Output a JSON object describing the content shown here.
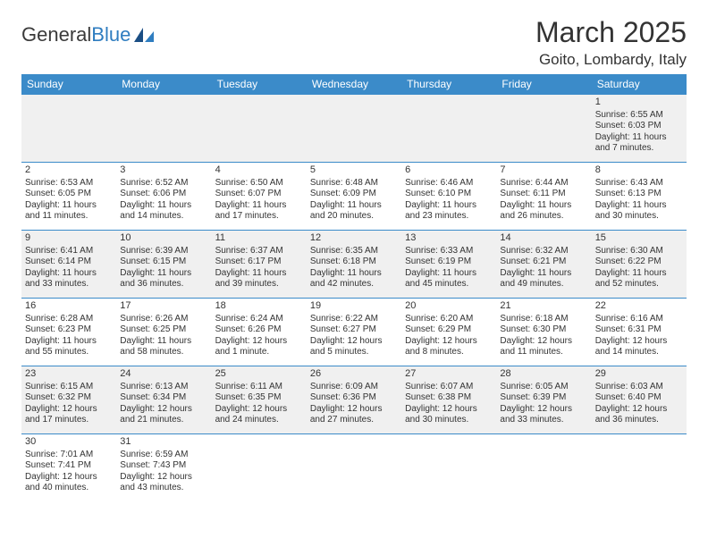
{
  "logo": {
    "text_general": "General",
    "text_blue": "Blue"
  },
  "title": "March 2025",
  "location": "Goito, Lombardy, Italy",
  "colors": {
    "header_bg": "#3b8bc9",
    "header_text": "#ffffff",
    "row_alt_bg": "#f0f0f0",
    "row_bg": "#ffffff",
    "border": "#3b8bc9",
    "text": "#333333",
    "logo_blue": "#2f7dc0"
  },
  "day_headers": [
    "Sunday",
    "Monday",
    "Tuesday",
    "Wednesday",
    "Thursday",
    "Friday",
    "Saturday"
  ],
  "weeks": [
    [
      null,
      null,
      null,
      null,
      null,
      null,
      {
        "n": "1",
        "sunrise": "6:55 AM",
        "sunset": "6:03 PM",
        "day_h": "11",
        "day_m": "7"
      }
    ],
    [
      {
        "n": "2",
        "sunrise": "6:53 AM",
        "sunset": "6:05 PM",
        "day_h": "11",
        "day_m": "11"
      },
      {
        "n": "3",
        "sunrise": "6:52 AM",
        "sunset": "6:06 PM",
        "day_h": "11",
        "day_m": "14"
      },
      {
        "n": "4",
        "sunrise": "6:50 AM",
        "sunset": "6:07 PM",
        "day_h": "11",
        "day_m": "17"
      },
      {
        "n": "5",
        "sunrise": "6:48 AM",
        "sunset": "6:09 PM",
        "day_h": "11",
        "day_m": "20"
      },
      {
        "n": "6",
        "sunrise": "6:46 AM",
        "sunset": "6:10 PM",
        "day_h": "11",
        "day_m": "23"
      },
      {
        "n": "7",
        "sunrise": "6:44 AM",
        "sunset": "6:11 PM",
        "day_h": "11",
        "day_m": "26"
      },
      {
        "n": "8",
        "sunrise": "6:43 AM",
        "sunset": "6:13 PM",
        "day_h": "11",
        "day_m": "30"
      }
    ],
    [
      {
        "n": "9",
        "sunrise": "6:41 AM",
        "sunset": "6:14 PM",
        "day_h": "11",
        "day_m": "33"
      },
      {
        "n": "10",
        "sunrise": "6:39 AM",
        "sunset": "6:15 PM",
        "day_h": "11",
        "day_m": "36"
      },
      {
        "n": "11",
        "sunrise": "6:37 AM",
        "sunset": "6:17 PM",
        "day_h": "11",
        "day_m": "39"
      },
      {
        "n": "12",
        "sunrise": "6:35 AM",
        "sunset": "6:18 PM",
        "day_h": "11",
        "day_m": "42"
      },
      {
        "n": "13",
        "sunrise": "6:33 AM",
        "sunset": "6:19 PM",
        "day_h": "11",
        "day_m": "45"
      },
      {
        "n": "14",
        "sunrise": "6:32 AM",
        "sunset": "6:21 PM",
        "day_h": "11",
        "day_m": "49"
      },
      {
        "n": "15",
        "sunrise": "6:30 AM",
        "sunset": "6:22 PM",
        "day_h": "11",
        "day_m": "52"
      }
    ],
    [
      {
        "n": "16",
        "sunrise": "6:28 AM",
        "sunset": "6:23 PM",
        "day_h": "11",
        "day_m": "55"
      },
      {
        "n": "17",
        "sunrise": "6:26 AM",
        "sunset": "6:25 PM",
        "day_h": "11",
        "day_m": "58"
      },
      {
        "n": "18",
        "sunrise": "6:24 AM",
        "sunset": "6:26 PM",
        "day_h": "12",
        "day_m": "1",
        "singular": true
      },
      {
        "n": "19",
        "sunrise": "6:22 AM",
        "sunset": "6:27 PM",
        "day_h": "12",
        "day_m": "5"
      },
      {
        "n": "20",
        "sunrise": "6:20 AM",
        "sunset": "6:29 PM",
        "day_h": "12",
        "day_m": "8"
      },
      {
        "n": "21",
        "sunrise": "6:18 AM",
        "sunset": "6:30 PM",
        "day_h": "12",
        "day_m": "11"
      },
      {
        "n": "22",
        "sunrise": "6:16 AM",
        "sunset": "6:31 PM",
        "day_h": "12",
        "day_m": "14"
      }
    ],
    [
      {
        "n": "23",
        "sunrise": "6:15 AM",
        "sunset": "6:32 PM",
        "day_h": "12",
        "day_m": "17"
      },
      {
        "n": "24",
        "sunrise": "6:13 AM",
        "sunset": "6:34 PM",
        "day_h": "12",
        "day_m": "21"
      },
      {
        "n": "25",
        "sunrise": "6:11 AM",
        "sunset": "6:35 PM",
        "day_h": "12",
        "day_m": "24"
      },
      {
        "n": "26",
        "sunrise": "6:09 AM",
        "sunset": "6:36 PM",
        "day_h": "12",
        "day_m": "27"
      },
      {
        "n": "27",
        "sunrise": "6:07 AM",
        "sunset": "6:38 PM",
        "day_h": "12",
        "day_m": "30"
      },
      {
        "n": "28",
        "sunrise": "6:05 AM",
        "sunset": "6:39 PM",
        "day_h": "12",
        "day_m": "33"
      },
      {
        "n": "29",
        "sunrise": "6:03 AM",
        "sunset": "6:40 PM",
        "day_h": "12",
        "day_m": "36"
      }
    ],
    [
      {
        "n": "30",
        "sunrise": "7:01 AM",
        "sunset": "7:41 PM",
        "day_h": "12",
        "day_m": "40"
      },
      {
        "n": "31",
        "sunrise": "6:59 AM",
        "sunset": "7:43 PM",
        "day_h": "12",
        "day_m": "43"
      },
      null,
      null,
      null,
      null,
      null
    ]
  ],
  "labels": {
    "sunrise": "Sunrise:",
    "sunset": "Sunset:",
    "daylight": "Daylight:",
    "hours": "hours",
    "and": "and",
    "minutes": "minutes.",
    "minute": "minute."
  }
}
